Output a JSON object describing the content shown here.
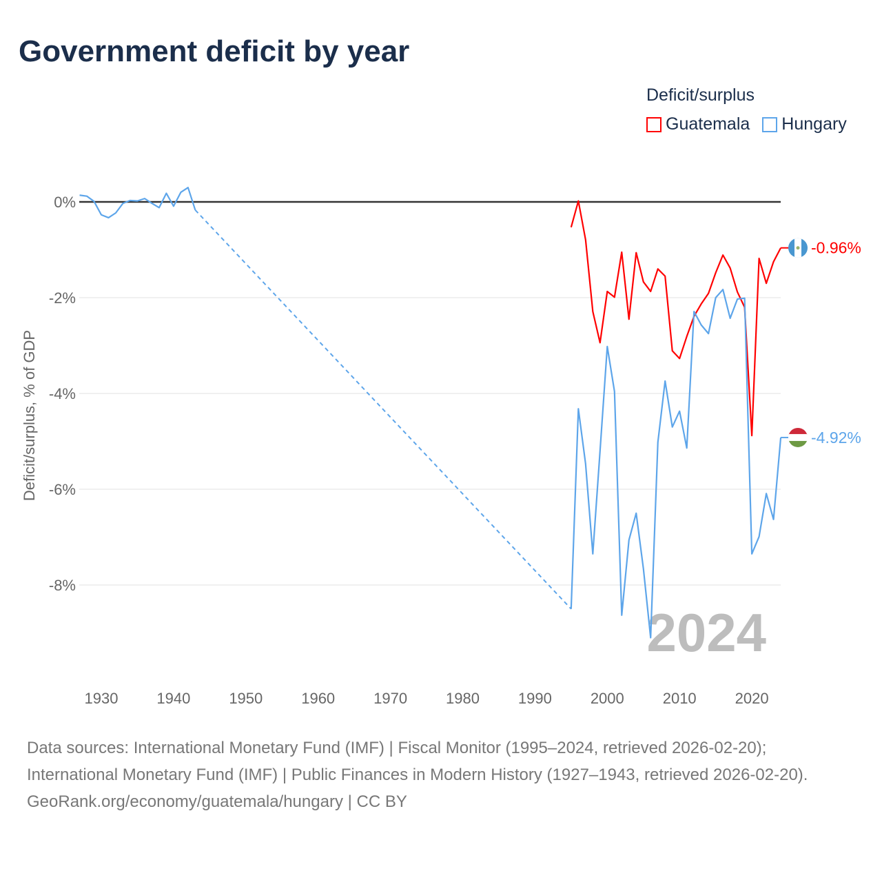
{
  "title": "Government deficit by year",
  "legend": {
    "title": "Deficit/surplus",
    "items": [
      "Guatemala",
      "Hungary"
    ]
  },
  "year_watermark": "2024",
  "footer": {
    "sources": "Data sources: International Monetary Fund (IMF) | Fiscal Monitor (1995–2024, retrieved 2026-02-20); International Monetary Fund (IMF) | Public Finances in Modern History (1927–1943, retrieved 2026-02-20).",
    "credit": "GeoRank.org/economy/guatemala/hungary | CC BY"
  },
  "colors": {
    "Guatemala": "#ff0000",
    "Hungary": "#5da5ea"
  },
  "chart_data": {
    "type": "line",
    "title": "Government deficit by year",
    "ylabel": "Deficit/surplus, % of GDP",
    "xlabel": "",
    "xlim": [
      1927,
      2024
    ],
    "ylim": [
      -9.8,
      0.9
    ],
    "xticks": [
      1930,
      1940,
      1950,
      1960,
      1970,
      1980,
      1990,
      2000,
      2010,
      2020
    ],
    "yticks": [
      0,
      -2,
      -4,
      -6,
      -8
    ],
    "ytick_labels": [
      "0%",
      "-2%",
      "-4%",
      "-6%",
      "-8%"
    ],
    "end_labels": {
      "Guatemala": "-0.96%",
      "Hungary": "-4.92%"
    },
    "series": [
      {
        "name": "Guatemala",
        "x": [
          1995,
          1996,
          1997,
          1998,
          1999,
          2000,
          2001,
          2002,
          2003,
          2004,
          2005,
          2006,
          2007,
          2008,
          2009,
          2010,
          2011,
          2012,
          2013,
          2014,
          2015,
          2016,
          2017,
          2018,
          2019,
          2020,
          2021,
          2022,
          2023,
          2024
        ],
        "values": [
          -0.53,
          0.02,
          -0.79,
          -2.29,
          -2.94,
          -1.87,
          -1.99,
          -1.05,
          -2.45,
          -1.06,
          -1.67,
          -1.87,
          -1.4,
          -1.55,
          -3.11,
          -3.27,
          -2.81,
          -2.39,
          -2.13,
          -1.91,
          -1.48,
          -1.11,
          -1.38,
          -1.88,
          -2.2,
          -4.88,
          -1.18,
          -1.7,
          -1.25,
          -0.96
        ]
      },
      {
        "name": "Hungary",
        "x": [
          1927,
          1928,
          1929,
          1930,
          1931,
          1932,
          1933,
          1934,
          1935,
          1936,
          1937,
          1938,
          1939,
          1940,
          1941,
          1942,
          1943,
          1995,
          1996,
          1997,
          1998,
          1999,
          2000,
          2001,
          2002,
          2003,
          2004,
          2005,
          2006,
          2007,
          2008,
          2009,
          2010,
          2011,
          2012,
          2013,
          2014,
          2015,
          2016,
          2017,
          2018,
          2019,
          2020,
          2021,
          2022,
          2023,
          2024
        ],
        "values": [
          0.14,
          0.12,
          0.01,
          -0.27,
          -0.33,
          -0.23,
          -0.03,
          0.03,
          0.02,
          0.07,
          -0.03,
          -0.12,
          0.18,
          -0.09,
          0.2,
          0.3,
          -0.17,
          -8.5,
          -4.32,
          -5.47,
          -7.35,
          -5.2,
          -3.02,
          -3.96,
          -8.63,
          -7.06,
          -6.5,
          -7.66,
          -9.1,
          -5.02,
          -3.74,
          -4.7,
          -4.37,
          -5.14,
          -2.29,
          -2.57,
          -2.75,
          -2.0,
          -1.83,
          -2.43,
          -2.03,
          -2.01,
          -7.35,
          -6.99,
          -6.09,
          -6.63,
          -4.92
        ]
      }
    ],
    "gap": {
      "series": "Hungary",
      "from": 1943,
      "to": 1995,
      "style": "dashed"
    }
  }
}
